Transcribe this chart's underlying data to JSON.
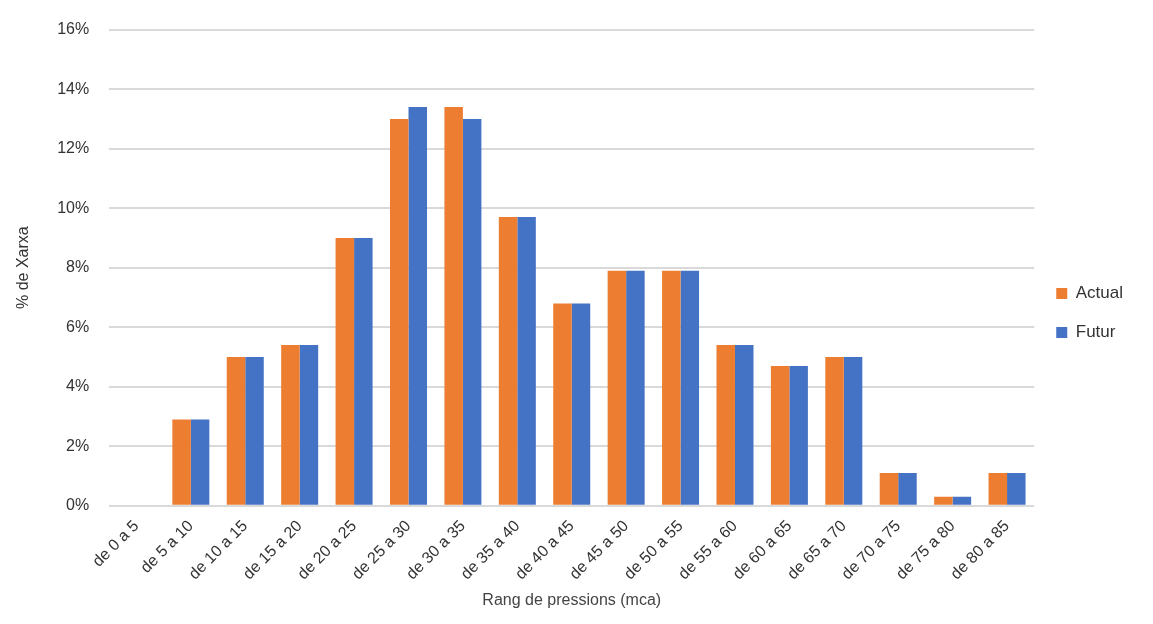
{
  "chart_data": {
    "type": "bar",
    "xlabel": "Rang de pressions (mca)",
    "ylabel": "% de Xarxa",
    "categories": [
      "de 0 a 5",
      "de 5 a 10",
      "de 10 a 15",
      "de 15 a 20",
      "de 20 a 25",
      "de 25 a 30",
      "de 30 a 35",
      "de 35 a 40",
      "de 40 a 45",
      "de 45 a 50",
      "de 50 a 55",
      "de 55 a 60",
      "de 60 a 65",
      "de 65 a 70",
      "de 70 a 75",
      "de 75 a 80",
      "de 80 a 85"
    ],
    "series": [
      {
        "name": "Actual",
        "color": "#ed7d31",
        "values": [
          0,
          2.9,
          5.0,
          5.4,
          9.0,
          13.0,
          13.4,
          9.7,
          6.8,
          7.9,
          7.9,
          5.4,
          4.7,
          5.0,
          1.1,
          0.3,
          1.1
        ]
      },
      {
        "name": "Futur",
        "color": "#4472c4",
        "values": [
          0,
          2.9,
          5.0,
          5.4,
          9.0,
          13.4,
          13.0,
          9.7,
          6.8,
          7.9,
          7.9,
          5.4,
          4.7,
          5.0,
          1.1,
          0.3,
          1.1
        ]
      }
    ],
    "ylim": [
      0,
      16
    ],
    "yticks": [
      {
        "value": 0,
        "label": "0%"
      },
      {
        "value": 2,
        "label": "2%"
      },
      {
        "value": 4,
        "label": "4%"
      },
      {
        "value": 6,
        "label": "6%"
      },
      {
        "value": 8,
        "label": "8%"
      },
      {
        "value": 10,
        "label": "10%"
      },
      {
        "value": 12,
        "label": "12%"
      },
      {
        "value": 14,
        "label": "14%"
      },
      {
        "value": 16,
        "label": "16%"
      }
    ],
    "grid": "y",
    "legend": "right"
  }
}
